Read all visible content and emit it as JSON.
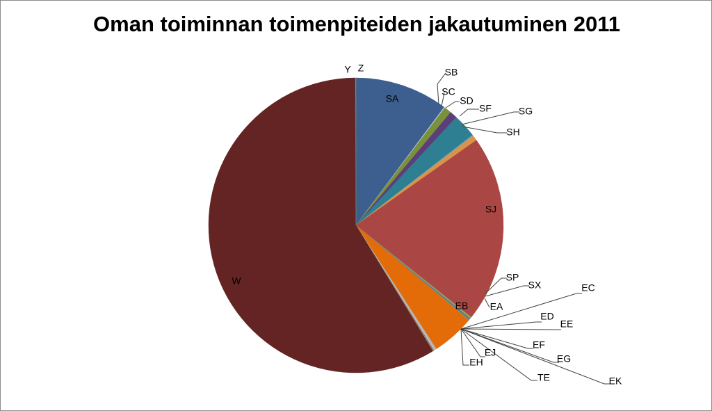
{
  "chart_data": {
    "type": "pie",
    "title": "Oman toiminnan toimenpiteiden jakautuminen 2011",
    "slices": [
      {
        "label": "SA",
        "value": 10.2,
        "color": "#3c5f8f"
      },
      {
        "label": "SB",
        "value": 0.1,
        "color": "#b8c8e0"
      },
      {
        "label": "SC",
        "value": 0.8,
        "color": "#7a913a"
      },
      {
        "label": "SD",
        "value": 0.8,
        "color": "#5c3f7a"
      },
      {
        "label": "SF",
        "value": 2.6,
        "color": "#2f7f93"
      },
      {
        "label": "SG",
        "value": 0.1,
        "color": "#6aa0c8"
      },
      {
        "label": "SH",
        "value": 0.6,
        "color": "#d9944a"
      },
      {
        "label": "SJ",
        "value": 20.5,
        "color": "#aa4744"
      },
      {
        "label": "SP",
        "value": 0.2,
        "color": "#8ea85a"
      },
      {
        "label": "SX",
        "value": 0.1,
        "color": "#6c5a90"
      },
      {
        "label": "EA",
        "value": 0.1,
        "color": "#4aa0b5"
      },
      {
        "label": "EB",
        "value": 4.7,
        "color": "#e36c09"
      },
      {
        "label": "EC",
        "value": 0.05,
        "color": "#95b3d7"
      },
      {
        "label": "ED",
        "value": 0.05,
        "color": "#d99694"
      },
      {
        "label": "EE",
        "value": 0.05,
        "color": "#c3d69b"
      },
      {
        "label": "EF",
        "value": 0.05,
        "color": "#b3a2c7"
      },
      {
        "label": "EG",
        "value": 0.05,
        "color": "#93cddd"
      },
      {
        "label": "EK",
        "value": 0.05,
        "color": "#fac090"
      },
      {
        "label": "TE",
        "value": 0.05,
        "color": "#4f81bd"
      },
      {
        "label": "EJ",
        "value": 0.05,
        "color": "#c0504d"
      },
      {
        "label": "EH",
        "value": 0.05,
        "color": "#9bbb59"
      },
      {
        "label": "W",
        "value": 58.6,
        "color": "#632423"
      },
      {
        "label": "Y",
        "value": 0.05,
        "color": "#1f497d"
      },
      {
        "label": "Z",
        "value": 0.05,
        "color": "#948a54"
      }
    ],
    "legend": "none"
  }
}
